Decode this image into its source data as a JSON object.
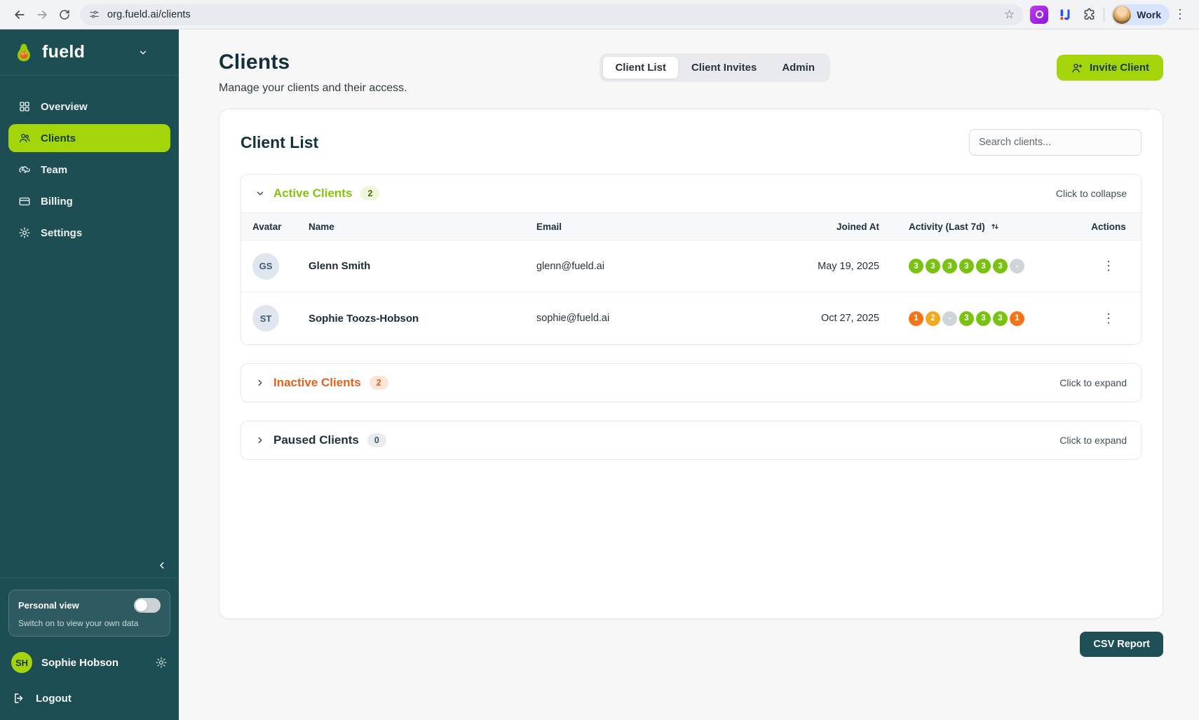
{
  "browser": {
    "url": "org.fueld.ai/clients",
    "profile_label": "Work",
    "icons": {
      "menu_glyph": "⋮",
      "star_glyph": "☆"
    }
  },
  "sidebar": {
    "brand": "fueld",
    "items": [
      {
        "label": "Overview"
      },
      {
        "label": "Clients"
      },
      {
        "label": "Team"
      },
      {
        "label": "Billing"
      },
      {
        "label": "Settings"
      }
    ],
    "personal_view": {
      "title": "Personal view",
      "subtitle": "Switch on to view your own data"
    },
    "user": {
      "initials": "SH",
      "name": "Sophie Hobson"
    },
    "logout_label": "Logout"
  },
  "header": {
    "title": "Clients",
    "subtitle": "Manage your clients and their access.",
    "tabs": [
      {
        "label": "Client List",
        "active": true
      },
      {
        "label": "Client Invites",
        "active": false
      },
      {
        "label": "Admin",
        "active": false
      }
    ],
    "invite_button": "Invite Client"
  },
  "client_list": {
    "title": "Client List",
    "search_placeholder": "Search clients...",
    "columns": [
      "Avatar",
      "Name",
      "Email",
      "Joined At",
      "Activity (Last 7d)",
      "Actions"
    ],
    "sections": {
      "active": {
        "title": "Active Clients",
        "count": "2",
        "hint": "Click to collapse"
      },
      "inactive": {
        "title": "Inactive Clients",
        "count": "2",
        "hint": "Click to expand"
      },
      "paused": {
        "title": "Paused Clients",
        "count": "0",
        "hint": "Click to expand"
      }
    },
    "rows": [
      {
        "initials": "GS",
        "name": "Glenn Smith",
        "email": "glenn@fueld.ai",
        "joined": "May 19, 2025",
        "activity": [
          {
            "v": "3",
            "c": "green"
          },
          {
            "v": "3",
            "c": "green"
          },
          {
            "v": "3",
            "c": "green"
          },
          {
            "v": "3",
            "c": "green"
          },
          {
            "v": "3",
            "c": "green"
          },
          {
            "v": "3",
            "c": "green"
          },
          {
            "v": "-",
            "c": "gray"
          }
        ]
      },
      {
        "initials": "ST",
        "name": "Sophie Toozs-Hobson",
        "email": "sophie@fueld.ai",
        "joined": "Oct 27, 2025",
        "activity": [
          {
            "v": "1",
            "c": "orange"
          },
          {
            "v": "2",
            "c": "amber"
          },
          {
            "v": "-",
            "c": "gray"
          },
          {
            "v": "3",
            "c": "green"
          },
          {
            "v": "3",
            "c": "green"
          },
          {
            "v": "3",
            "c": "green"
          },
          {
            "v": "1",
            "c": "orange"
          }
        ]
      }
    ],
    "actions_glyph": "⋮"
  },
  "footer": {
    "csv_button": "CSV Report"
  },
  "colors": {
    "accent_lime": "#a4d50b",
    "sidebar_teal": "#1c4e54",
    "active_green": "#84c40e",
    "inactive_orange": "#e8611b",
    "badge": {
      "green": "#78c30d",
      "orange": "#f97316",
      "amber": "#f6a81c",
      "gray": "#cfd4d9"
    }
  }
}
